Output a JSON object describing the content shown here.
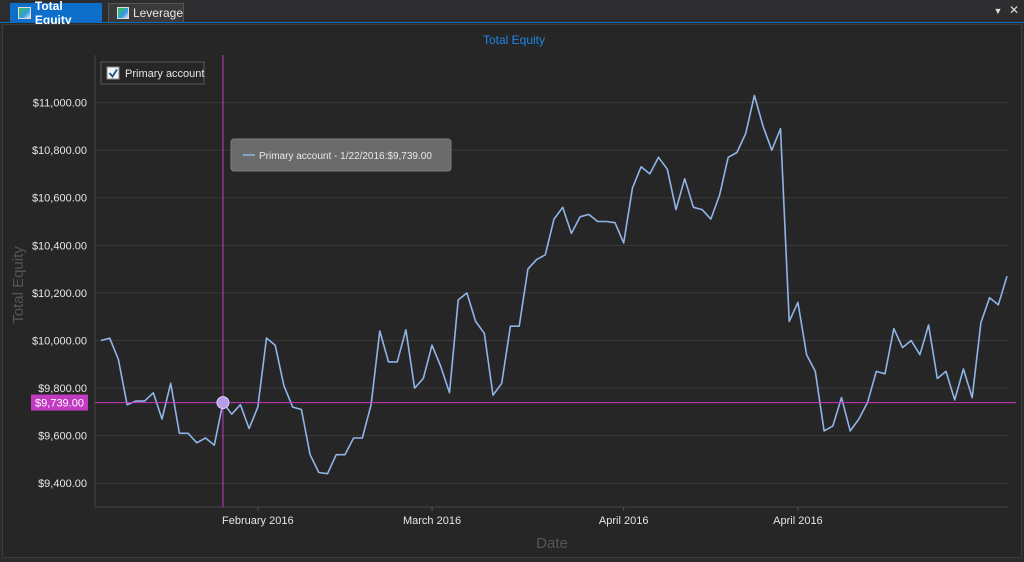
{
  "tabs": [
    {
      "label": "Total Equity",
      "active": true
    },
    {
      "label": "Leverage",
      "active": false
    }
  ],
  "window_controls": {
    "dropdown": "▼",
    "close": "✕"
  },
  "colors": {
    "line": "#8fb4e8",
    "crosshair": "#c23ac2",
    "title": "#1e86e6",
    "grid": "#3a3a3a",
    "marker": "#b79be8"
  },
  "chart_data": {
    "type": "line",
    "title": "Total Equity",
    "xlabel": "Date",
    "ylabel": "Total Equity",
    "ylim": [
      9300,
      11200
    ],
    "yticks": [
      9400,
      9600,
      9800,
      10000,
      10200,
      10400,
      10600,
      10800,
      11000
    ],
    "ytick_labels": [
      "$9,400.00",
      "$9,600.00",
      "$9,800.00",
      "$10,000.00",
      "$10,200.00",
      "$10,400.00",
      "$10,600.00",
      "$10,800.00",
      "$11,000.00"
    ],
    "xtick_labels": [
      "February 2016",
      "March 2016",
      "April 2016",
      "April 2016"
    ],
    "xtick_index": [
      18,
      38,
      60,
      80
    ],
    "grid": true,
    "legend_position": "top-left",
    "series": [
      {
        "name": "Primary account",
        "values": [
          10000,
          10010,
          9920,
          9730,
          9745,
          9745,
          9780,
          9670,
          9820,
          9610,
          9610,
          9570,
          9590,
          9560,
          9739,
          9690,
          9730,
          9630,
          9720,
          10010,
          9980,
          9810,
          9720,
          9710,
          9520,
          9445,
          9440,
          9520,
          9520,
          9590,
          9590,
          9730,
          10040,
          9910,
          9910,
          10045,
          9800,
          9840,
          9980,
          9890,
          9780,
          10170,
          10200,
          10080,
          10030,
          9770,
          9820,
          10060,
          10060,
          10300,
          10340,
          10360,
          10510,
          10560,
          10450,
          10520,
          10530,
          10500,
          10500,
          10495,
          10410,
          10640,
          10730,
          10700,
          10770,
          10720,
          10550,
          10680,
          10560,
          10550,
          10510,
          10610,
          10770,
          10790,
          10870,
          11030,
          10900,
          10800,
          10890,
          10080,
          10160,
          9940,
          9870,
          9620,
          9640,
          9760,
          9620,
          9670,
          9740,
          9870,
          9860,
          10050,
          9970,
          10000,
          9940,
          10065,
          9840,
          9870,
          9750,
          9880,
          9760,
          10075,
          10180,
          10150,
          10270
        ]
      }
    ],
    "crosshair": {
      "index": 14,
      "value_label": "$9,739.00"
    },
    "tooltip": "Primary account - 1/22/2016:$9,739.00"
  }
}
